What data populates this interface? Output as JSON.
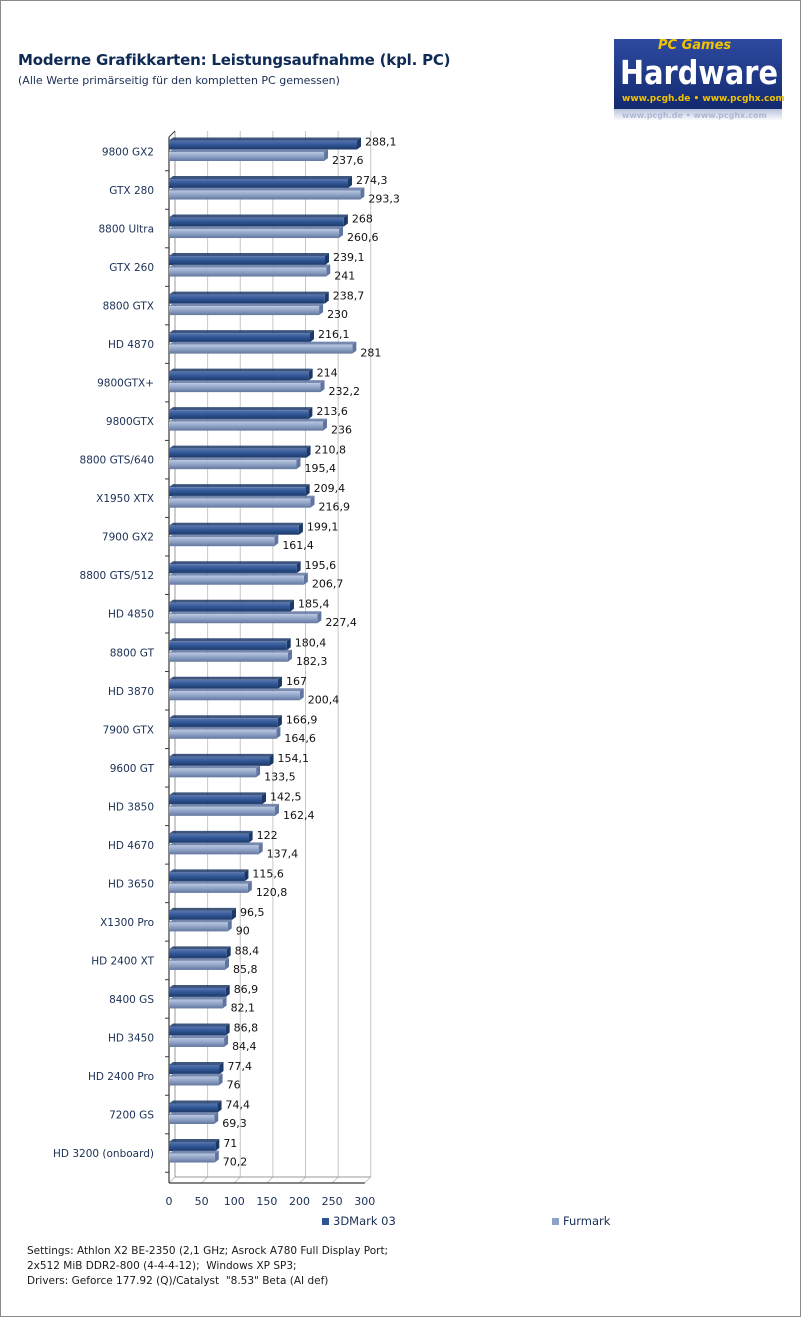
{
  "header": {
    "title": "Moderne Grafikkarten: Leistungsaufnahme (kpl. PC)",
    "subtitle": "(Alle Werte primärseitig für den kompletten PC gemessen)"
  },
  "logo": {
    "top_text": "PC Games",
    "main_text": "Hardware",
    "url_text": "www.pcgh.de • www.pcghx.com",
    "reflection_text": "www.pcgh.de • www.pcghx.com"
  },
  "colors": {
    "series1": "#2f5493",
    "series1_dark": "#1c3866",
    "series2": "#8ea2c6",
    "series2_dark": "#5f74a0",
    "grid": "#c6c6c6",
    "axis": "#3a3a3a",
    "label": "#1a2f55"
  },
  "chart_data": {
    "type": "bar",
    "orientation": "horizontal",
    "categories": [
      "9800 GX2",
      "GTX 280",
      "8800 Ultra",
      "GTX 260",
      "8800 GTX",
      "HD 4870",
      "9800GTX+",
      "9800GTX",
      "8800 GTS/640",
      "X1950 XTX",
      "7900 GX2",
      "8800 GTS/512",
      "HD 4850",
      "8800 GT",
      "HD 3870",
      "7900 GTX",
      "9600 GT",
      "HD 3850",
      "HD 4670",
      "HD 3650",
      "X1300 Pro",
      "HD 2400 XT",
      "8400 GS",
      "HD 3450",
      "HD 2400 Pro",
      "7200 GS",
      "HD 3200 (onboard)"
    ],
    "series": [
      {
        "name": "3DMark 03",
        "values": [
          288.1,
          274.3,
          268,
          239.1,
          238.7,
          216.1,
          214,
          213.6,
          210.8,
          209.4,
          199.1,
          195.6,
          185.4,
          180.4,
          167,
          166.9,
          154.1,
          142.5,
          122,
          115.6,
          96.5,
          88.4,
          86.9,
          86.8,
          77.4,
          74.4,
          71
        ],
        "labels": [
          "288,1",
          "274,3",
          "268",
          "239,1",
          "238,7",
          "216,1",
          "214",
          "213,6",
          "210,8",
          "209,4",
          "199,1",
          "195,6",
          "185,4",
          "180,4",
          "167",
          "166,9",
          "154,1",
          "142,5",
          "122",
          "115,6",
          "96,5",
          "88,4",
          "86,9",
          "86,8",
          "77,4",
          "74,4",
          "71"
        ]
      },
      {
        "name": "Furmark",
        "values": [
          237.6,
          293.3,
          260.6,
          241,
          230,
          281,
          232.2,
          236,
          195.4,
          216.9,
          161.4,
          206.7,
          227.4,
          182.3,
          200.4,
          164.6,
          133.5,
          162.4,
          137.4,
          120.8,
          90,
          85.8,
          82.1,
          84.4,
          76,
          69.3,
          70.2
        ],
        "labels": [
          "237,6",
          "293,3",
          "260,6",
          "241",
          "230",
          "281",
          "232,2",
          "236",
          "195,4",
          "216,9",
          "161,4",
          "206,7",
          "227,4",
          "182,3",
          "200,4",
          "164,6",
          "133,5",
          "162,4",
          "137,4",
          "120,8",
          "90",
          "85,8",
          "82,1",
          "84,4",
          "76",
          "69,3",
          "70,2"
        ]
      }
    ],
    "xlim": [
      0,
      300
    ],
    "xticks": [
      "0",
      "50",
      "100",
      "150",
      "200",
      "250",
      "300"
    ],
    "grid": true,
    "legend_position": "bottom"
  },
  "notes": [
    "Settings: Athlon X2 BE-2350 (2,1 GHz; Asrock A780 Full Display Port;",
    "2x512 MiB DDR2-800 (4-4-4-12);  Windows XP SP3;",
    "Drivers: Geforce 177.92 (Q)/Catalyst  \"8.53\" Beta (AI def)"
  ]
}
